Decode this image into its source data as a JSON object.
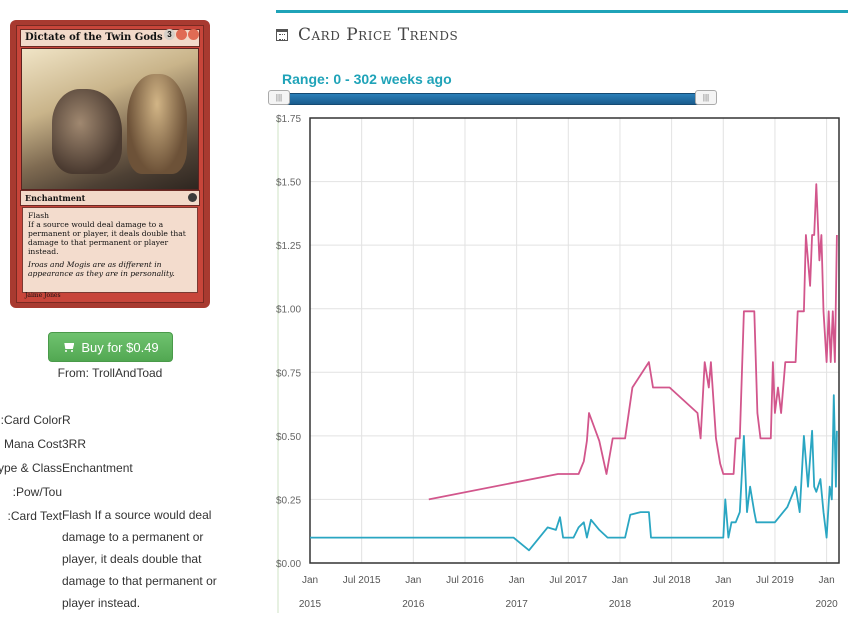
{
  "card": {
    "name": "Dictate of the Twin Gods",
    "cost_generic": "3",
    "type_line": "Enchantment",
    "rules": [
      "Flash",
      "If a source would deal damage to a permanent or player, it deals double that damage to that permanent or player instead."
    ],
    "flavor": "Iroas and Mogis are as different in appearance as they are in personality.",
    "artist": "Jaime Jones"
  },
  "buy": {
    "label": "Buy for $0.49",
    "from": "From: TrollAndToad"
  },
  "details": [
    {
      "label": "Card Color:",
      "value": "R"
    },
    {
      "label": "Mana Cost",
      "value": "3RR"
    },
    {
      "label": "Type & Class:",
      "value": "Enchantment"
    },
    {
      "label": "Pow/Tou:",
      "value": ""
    },
    {
      "label": "Card Text:",
      "value": "Flash If a source would deal damage to a permanent or player, it deals double that damage to that permanent or player instead."
    }
  ],
  "chart_header": {
    "title": "Card Price Trends",
    "range": "Range: 0 - 302 weeks ago"
  },
  "chart_data": {
    "type": "line",
    "xlim": [
      2015.0,
      2020.12
    ],
    "ylim": [
      0,
      1.75
    ],
    "y_ticks": [
      {
        "v": 1.75,
        "label": "$1.75"
      },
      {
        "v": 1.5,
        "label": "$1.50"
      },
      {
        "v": 1.25,
        "label": "$1.25"
      },
      {
        "v": 1.0,
        "label": "$1.00"
      },
      {
        "v": 0.75,
        "label": "$0.75"
      },
      {
        "v": 0.5,
        "label": "$0.50"
      },
      {
        "v": 0.25,
        "label": "$0.25"
      },
      {
        "v": 0.0,
        "label": "$0.00"
      }
    ],
    "x_ticks": [
      {
        "v": 2015.0,
        "label": "Jan",
        "year": "2015"
      },
      {
        "v": 2015.5,
        "label": "Jul 2015",
        "year": ""
      },
      {
        "v": 2016.0,
        "label": "Jan",
        "year": "2016"
      },
      {
        "v": 2016.5,
        "label": "Jul 2016",
        "year": ""
      },
      {
        "v": 2017.0,
        "label": "Jan",
        "year": "2017"
      },
      {
        "v": 2017.5,
        "label": "Jul 2017",
        "year": ""
      },
      {
        "v": 2018.0,
        "label": "Jan",
        "year": "2018"
      },
      {
        "v": 2018.5,
        "label": "Jul 2018",
        "year": ""
      },
      {
        "v": 2019.0,
        "label": "Jan",
        "year": "2019"
      },
      {
        "v": 2019.5,
        "label": "Jul 2019",
        "year": ""
      },
      {
        "v": 2020.0,
        "label": "Jan",
        "year": "2020"
      }
    ],
    "grid": true,
    "series": [
      {
        "color": "#d2568c",
        "points": [
          [
            2016.15,
            0.25
          ],
          [
            2017.4,
            0.35
          ],
          [
            2017.6,
            0.35
          ],
          [
            2017.65,
            0.4
          ],
          [
            2017.68,
            0.48
          ],
          [
            2017.7,
            0.59
          ],
          [
            2017.8,
            0.48
          ],
          [
            2017.87,
            0.35
          ],
          [
            2017.93,
            0.49
          ],
          [
            2018.05,
            0.49
          ],
          [
            2018.12,
            0.69
          ],
          [
            2018.28,
            0.79
          ],
          [
            2018.32,
            0.69
          ],
          [
            2018.48,
            0.69
          ],
          [
            2018.75,
            0.59
          ],
          [
            2018.78,
            0.49
          ],
          [
            2018.82,
            0.79
          ],
          [
            2018.86,
            0.69
          ],
          [
            2018.88,
            0.79
          ],
          [
            2018.93,
            0.49
          ],
          [
            2018.97,
            0.39
          ],
          [
            2019.0,
            0.35
          ],
          [
            2019.1,
            0.35
          ],
          [
            2019.12,
            0.49
          ],
          [
            2019.16,
            0.49
          ],
          [
            2019.2,
            0.99
          ],
          [
            2019.3,
            0.99
          ],
          [
            2019.33,
            0.59
          ],
          [
            2019.36,
            0.49
          ],
          [
            2019.46,
            0.49
          ],
          [
            2019.48,
            0.79
          ],
          [
            2019.5,
            0.59
          ],
          [
            2019.53,
            0.69
          ],
          [
            2019.56,
            0.59
          ],
          [
            2019.6,
            0.79
          ],
          [
            2019.7,
            0.79
          ],
          [
            2019.72,
            0.99
          ],
          [
            2019.78,
            0.99
          ],
          [
            2019.8,
            1.29
          ],
          [
            2019.84,
            1.09
          ],
          [
            2019.86,
            1.29
          ],
          [
            2019.88,
            1.29
          ],
          [
            2019.9,
            1.49
          ],
          [
            2019.93,
            1.19
          ],
          [
            2019.95,
            1.29
          ],
          [
            2019.97,
            0.99
          ],
          [
            2020.0,
            0.79
          ],
          [
            2020.02,
            0.99
          ],
          [
            2020.04,
            0.79
          ],
          [
            2020.06,
            0.99
          ],
          [
            2020.08,
            0.79
          ],
          [
            2020.1,
            1.29
          ]
        ]
      },
      {
        "color": "#2aa6c2",
        "points": [
          [
            2015.0,
            0.1
          ],
          [
            2016.97,
            0.1
          ],
          [
            2017.12,
            0.05
          ],
          [
            2017.3,
            0.14
          ],
          [
            2017.38,
            0.13
          ],
          [
            2017.42,
            0.18
          ],
          [
            2017.45,
            0.1
          ],
          [
            2017.55,
            0.1
          ],
          [
            2017.6,
            0.14
          ],
          [
            2017.65,
            0.16
          ],
          [
            2017.68,
            0.1
          ],
          [
            2017.72,
            0.17
          ],
          [
            2017.8,
            0.13
          ],
          [
            2017.88,
            0.1
          ],
          [
            2018.05,
            0.1
          ],
          [
            2018.1,
            0.19
          ],
          [
            2018.2,
            0.2
          ],
          [
            2018.28,
            0.2
          ],
          [
            2018.3,
            0.1
          ],
          [
            2019.0,
            0.1
          ],
          [
            2019.02,
            0.25
          ],
          [
            2019.05,
            0.1
          ],
          [
            2019.08,
            0.16
          ],
          [
            2019.12,
            0.16
          ],
          [
            2019.16,
            0.2
          ],
          [
            2019.2,
            0.5
          ],
          [
            2019.23,
            0.2
          ],
          [
            2019.26,
            0.3
          ],
          [
            2019.3,
            0.2
          ],
          [
            2019.32,
            0.16
          ],
          [
            2019.45,
            0.16
          ],
          [
            2019.5,
            0.16
          ],
          [
            2019.58,
            0.2
          ],
          [
            2019.62,
            0.22
          ],
          [
            2019.7,
            0.3
          ],
          [
            2019.74,
            0.2
          ],
          [
            2019.78,
            0.5
          ],
          [
            2019.82,
            0.3
          ],
          [
            2019.86,
            0.52
          ],
          [
            2019.88,
            0.3
          ],
          [
            2019.9,
            0.28
          ],
          [
            2019.94,
            0.33
          ],
          [
            2019.97,
            0.2
          ],
          [
            2020.0,
            0.1
          ],
          [
            2020.03,
            0.3
          ],
          [
            2020.05,
            0.25
          ],
          [
            2020.07,
            0.66
          ],
          [
            2020.09,
            0.3
          ],
          [
            2020.1,
            0.52
          ]
        ]
      }
    ]
  }
}
